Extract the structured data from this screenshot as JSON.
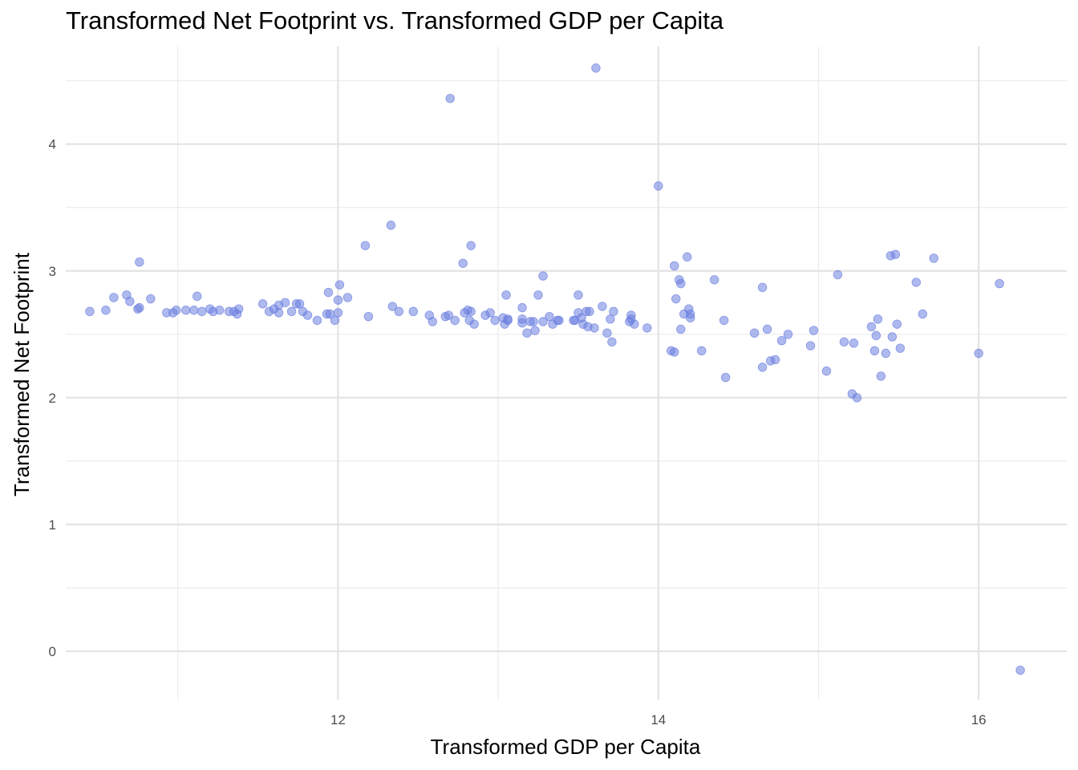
{
  "chart_data": {
    "type": "scatter",
    "title": "Transformed Net Footprint vs. Transformed GDP per Capita",
    "xlabel": "Transformed GDP per Capita",
    "ylabel": "Transformed Net Footprint",
    "xlim": [
      10.3,
      16.55
    ],
    "ylim": [
      -0.38,
      4.77
    ],
    "xticks": [
      12,
      14,
      16
    ],
    "xminor": [
      11,
      13,
      15
    ],
    "yticks": [
      0,
      1,
      2,
      3,
      4
    ],
    "yminor": [
      0.5,
      1.5,
      2.5,
      3.5,
      4.5
    ],
    "grid": true,
    "legend": "none",
    "point_color": "#6c7fe0",
    "points": [
      [
        10.45,
        2.68
      ],
      [
        10.55,
        2.69
      ],
      [
        10.6,
        2.79
      ],
      [
        10.68,
        2.81
      ],
      [
        10.7,
        2.76
      ],
      [
        10.75,
        2.7
      ],
      [
        10.76,
        2.71
      ],
      [
        10.76,
        3.07
      ],
      [
        10.83,
        2.78
      ],
      [
        10.93,
        2.67
      ],
      [
        10.97,
        2.67
      ],
      [
        10.99,
        2.69
      ],
      [
        11.05,
        2.69
      ],
      [
        11.1,
        2.69
      ],
      [
        11.12,
        2.8
      ],
      [
        11.15,
        2.68
      ],
      [
        11.2,
        2.7
      ],
      [
        11.22,
        2.68
      ],
      [
        11.26,
        2.69
      ],
      [
        11.32,
        2.68
      ],
      [
        11.35,
        2.68
      ],
      [
        11.37,
        2.66
      ],
      [
        11.38,
        2.7
      ],
      [
        11.53,
        2.74
      ],
      [
        11.57,
        2.68
      ],
      [
        11.6,
        2.7
      ],
      [
        11.63,
        2.67
      ],
      [
        11.63,
        2.73
      ],
      [
        11.67,
        2.75
      ],
      [
        11.71,
        2.68
      ],
      [
        11.74,
        2.74
      ],
      [
        11.76,
        2.74
      ],
      [
        11.78,
        2.68
      ],
      [
        11.81,
        2.65
      ],
      [
        11.87,
        2.61
      ],
      [
        11.93,
        2.66
      ],
      [
        11.94,
        2.83
      ],
      [
        11.95,
        2.66
      ],
      [
        11.98,
        2.61
      ],
      [
        12.0,
        2.67
      ],
      [
        12.0,
        2.77
      ],
      [
        12.01,
        2.89
      ],
      [
        12.06,
        2.79
      ],
      [
        12.17,
        3.2
      ],
      [
        12.19,
        2.64
      ],
      [
        12.33,
        3.36
      ],
      [
        12.34,
        2.72
      ],
      [
        12.38,
        2.68
      ],
      [
        12.47,
        2.68
      ],
      [
        12.57,
        2.65
      ],
      [
        12.59,
        2.6
      ],
      [
        12.67,
        2.64
      ],
      [
        12.69,
        2.65
      ],
      [
        12.73,
        2.61
      ],
      [
        12.78,
        3.06
      ],
      [
        12.79,
        2.67
      ],
      [
        12.81,
        2.69
      ],
      [
        12.82,
        2.61
      ],
      [
        12.83,
        2.68
      ],
      [
        12.83,
        3.2
      ],
      [
        12.85,
        2.58
      ],
      [
        12.92,
        2.65
      ],
      [
        12.95,
        2.67
      ],
      [
        12.98,
        2.61
      ],
      [
        12.7,
        4.36
      ],
      [
        13.03,
        2.63
      ],
      [
        13.04,
        2.58
      ],
      [
        13.05,
        2.81
      ],
      [
        13.06,
        2.61
      ],
      [
        13.06,
        2.62
      ],
      [
        13.15,
        2.59
      ],
      [
        13.15,
        2.62
      ],
      [
        13.15,
        2.71
      ],
      [
        13.18,
        2.51
      ],
      [
        13.2,
        2.6
      ],
      [
        13.22,
        2.6
      ],
      [
        13.23,
        2.53
      ],
      [
        13.25,
        2.81
      ],
      [
        13.28,
        2.6
      ],
      [
        13.28,
        2.96
      ],
      [
        13.32,
        2.64
      ],
      [
        13.34,
        2.58
      ],
      [
        13.37,
        2.61
      ],
      [
        13.38,
        2.61
      ],
      [
        13.47,
        2.61
      ],
      [
        13.48,
        2.61
      ],
      [
        13.5,
        2.67
      ],
      [
        13.5,
        2.81
      ],
      [
        13.52,
        2.63
      ],
      [
        13.53,
        2.58
      ],
      [
        13.55,
        2.68
      ],
      [
        13.56,
        2.56
      ],
      [
        13.57,
        2.68
      ],
      [
        13.6,
        2.55
      ],
      [
        13.61,
        4.6
      ],
      [
        13.65,
        2.72
      ],
      [
        13.68,
        2.51
      ],
      [
        13.7,
        2.62
      ],
      [
        13.71,
        2.44
      ],
      [
        13.72,
        2.68
      ],
      [
        13.82,
        2.6
      ],
      [
        13.83,
        2.62
      ],
      [
        13.83,
        2.65
      ],
      [
        13.85,
        2.58
      ],
      [
        13.93,
        2.55
      ],
      [
        14.0,
        3.67
      ],
      [
        14.08,
        2.37
      ],
      [
        14.1,
        2.36
      ],
      [
        14.1,
        3.04
      ],
      [
        14.11,
        2.78
      ],
      [
        14.13,
        2.93
      ],
      [
        14.14,
        2.54
      ],
      [
        14.14,
        2.9
      ],
      [
        14.16,
        2.66
      ],
      [
        14.18,
        3.11
      ],
      [
        14.19,
        2.7
      ],
      [
        14.2,
        2.66
      ],
      [
        14.2,
        2.63
      ],
      [
        14.27,
        2.37
      ],
      [
        14.35,
        2.93
      ],
      [
        14.41,
        2.61
      ],
      [
        14.42,
        2.16
      ],
      [
        14.6,
        2.51
      ],
      [
        14.65,
        2.24
      ],
      [
        14.65,
        2.87
      ],
      [
        14.68,
        2.54
      ],
      [
        14.7,
        2.29
      ],
      [
        14.73,
        2.3
      ],
      [
        14.77,
        2.45
      ],
      [
        14.81,
        2.5
      ],
      [
        14.95,
        2.41
      ],
      [
        14.97,
        2.53
      ],
      [
        15.05,
        2.21
      ],
      [
        15.12,
        2.97
      ],
      [
        15.16,
        2.44
      ],
      [
        15.21,
        2.03
      ],
      [
        15.22,
        2.43
      ],
      [
        15.24,
        2.0
      ],
      [
        15.33,
        2.56
      ],
      [
        15.35,
        2.37
      ],
      [
        15.36,
        2.49
      ],
      [
        15.37,
        2.62
      ],
      [
        15.39,
        2.17
      ],
      [
        15.42,
        2.35
      ],
      [
        15.45,
        3.12
      ],
      [
        15.46,
        2.48
      ],
      [
        15.48,
        3.13
      ],
      [
        15.49,
        2.58
      ],
      [
        15.51,
        2.39
      ],
      [
        15.61,
        2.91
      ],
      [
        15.65,
        2.66
      ],
      [
        15.72,
        3.1
      ],
      [
        16.0,
        2.35
      ],
      [
        16.13,
        2.9
      ],
      [
        16.26,
        -0.15
      ]
    ]
  }
}
